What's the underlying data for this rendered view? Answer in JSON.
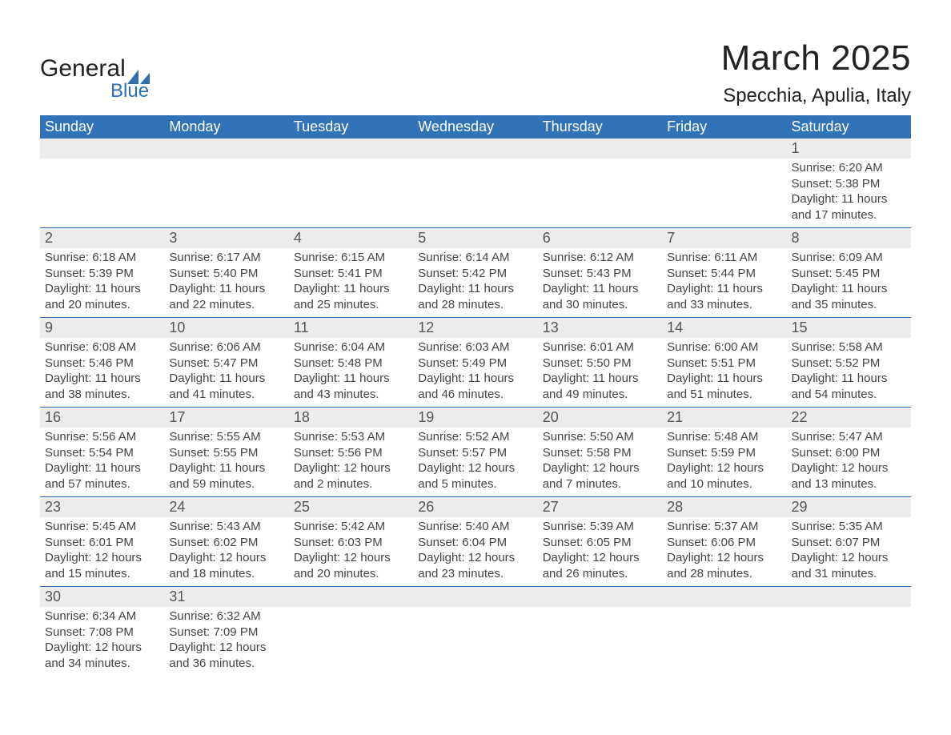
{
  "logo": {
    "text_general": "General",
    "text_blue": "Blue"
  },
  "title": {
    "month": "March 2025",
    "location": "Specchia, Apulia, Italy"
  },
  "style": {
    "header_bg": "#3173b7",
    "header_fg": "#ffffff",
    "daynum_bg": "#ececec",
    "daynum_fg": "#555555",
    "row_divider": "#2e6fb4",
    "body_bg": "#ffffff",
    "body_fg": "#444444",
    "logo_blue": "#2e6fb4",
    "month_fontsize": 44,
    "location_fontsize": 24,
    "header_fontsize": 18,
    "cell_fontsize": 15
  },
  "columns": [
    "Sunday",
    "Monday",
    "Tuesday",
    "Wednesday",
    "Thursday",
    "Friday",
    "Saturday"
  ],
  "weeks": [
    {
      "nums": [
        "",
        "",
        "",
        "",
        "",
        "",
        "1"
      ],
      "cells": [
        {
          "sr": "",
          "ss": "",
          "dl": ""
        },
        {
          "sr": "",
          "ss": "",
          "dl": ""
        },
        {
          "sr": "",
          "ss": "",
          "dl": ""
        },
        {
          "sr": "",
          "ss": "",
          "dl": ""
        },
        {
          "sr": "",
          "ss": "",
          "dl": ""
        },
        {
          "sr": "",
          "ss": "",
          "dl": ""
        },
        {
          "sr": "Sunrise: 6:20 AM",
          "ss": "Sunset: 5:38 PM",
          "dl": "Daylight: 11 hours and 17 minutes."
        }
      ]
    },
    {
      "nums": [
        "2",
        "3",
        "4",
        "5",
        "6",
        "7",
        "8"
      ],
      "cells": [
        {
          "sr": "Sunrise: 6:18 AM",
          "ss": "Sunset: 5:39 PM",
          "dl": "Daylight: 11 hours and 20 minutes."
        },
        {
          "sr": "Sunrise: 6:17 AM",
          "ss": "Sunset: 5:40 PM",
          "dl": "Daylight: 11 hours and 22 minutes."
        },
        {
          "sr": "Sunrise: 6:15 AM",
          "ss": "Sunset: 5:41 PM",
          "dl": "Daylight: 11 hours and 25 minutes."
        },
        {
          "sr": "Sunrise: 6:14 AM",
          "ss": "Sunset: 5:42 PM",
          "dl": "Daylight: 11 hours and 28 minutes."
        },
        {
          "sr": "Sunrise: 6:12 AM",
          "ss": "Sunset: 5:43 PM",
          "dl": "Daylight: 11 hours and 30 minutes."
        },
        {
          "sr": "Sunrise: 6:11 AM",
          "ss": "Sunset: 5:44 PM",
          "dl": "Daylight: 11 hours and 33 minutes."
        },
        {
          "sr": "Sunrise: 6:09 AM",
          "ss": "Sunset: 5:45 PM",
          "dl": "Daylight: 11 hours and 35 minutes."
        }
      ]
    },
    {
      "nums": [
        "9",
        "10",
        "11",
        "12",
        "13",
        "14",
        "15"
      ],
      "cells": [
        {
          "sr": "Sunrise: 6:08 AM",
          "ss": "Sunset: 5:46 PM",
          "dl": "Daylight: 11 hours and 38 minutes."
        },
        {
          "sr": "Sunrise: 6:06 AM",
          "ss": "Sunset: 5:47 PM",
          "dl": "Daylight: 11 hours and 41 minutes."
        },
        {
          "sr": "Sunrise: 6:04 AM",
          "ss": "Sunset: 5:48 PM",
          "dl": "Daylight: 11 hours and 43 minutes."
        },
        {
          "sr": "Sunrise: 6:03 AM",
          "ss": "Sunset: 5:49 PM",
          "dl": "Daylight: 11 hours and 46 minutes."
        },
        {
          "sr": "Sunrise: 6:01 AM",
          "ss": "Sunset: 5:50 PM",
          "dl": "Daylight: 11 hours and 49 minutes."
        },
        {
          "sr": "Sunrise: 6:00 AM",
          "ss": "Sunset: 5:51 PM",
          "dl": "Daylight: 11 hours and 51 minutes."
        },
        {
          "sr": "Sunrise: 5:58 AM",
          "ss": "Sunset: 5:52 PM",
          "dl": "Daylight: 11 hours and 54 minutes."
        }
      ]
    },
    {
      "nums": [
        "16",
        "17",
        "18",
        "19",
        "20",
        "21",
        "22"
      ],
      "cells": [
        {
          "sr": "Sunrise: 5:56 AM",
          "ss": "Sunset: 5:54 PM",
          "dl": "Daylight: 11 hours and 57 minutes."
        },
        {
          "sr": "Sunrise: 5:55 AM",
          "ss": "Sunset: 5:55 PM",
          "dl": "Daylight: 11 hours and 59 minutes."
        },
        {
          "sr": "Sunrise: 5:53 AM",
          "ss": "Sunset: 5:56 PM",
          "dl": "Daylight: 12 hours and 2 minutes."
        },
        {
          "sr": "Sunrise: 5:52 AM",
          "ss": "Sunset: 5:57 PM",
          "dl": "Daylight: 12 hours and 5 minutes."
        },
        {
          "sr": "Sunrise: 5:50 AM",
          "ss": "Sunset: 5:58 PM",
          "dl": "Daylight: 12 hours and 7 minutes."
        },
        {
          "sr": "Sunrise: 5:48 AM",
          "ss": "Sunset: 5:59 PM",
          "dl": "Daylight: 12 hours and 10 minutes."
        },
        {
          "sr": "Sunrise: 5:47 AM",
          "ss": "Sunset: 6:00 PM",
          "dl": "Daylight: 12 hours and 13 minutes."
        }
      ]
    },
    {
      "nums": [
        "23",
        "24",
        "25",
        "26",
        "27",
        "28",
        "29"
      ],
      "cells": [
        {
          "sr": "Sunrise: 5:45 AM",
          "ss": "Sunset: 6:01 PM",
          "dl": "Daylight: 12 hours and 15 minutes."
        },
        {
          "sr": "Sunrise: 5:43 AM",
          "ss": "Sunset: 6:02 PM",
          "dl": "Daylight: 12 hours and 18 minutes."
        },
        {
          "sr": "Sunrise: 5:42 AM",
          "ss": "Sunset: 6:03 PM",
          "dl": "Daylight: 12 hours and 20 minutes."
        },
        {
          "sr": "Sunrise: 5:40 AM",
          "ss": "Sunset: 6:04 PM",
          "dl": "Daylight: 12 hours and 23 minutes."
        },
        {
          "sr": "Sunrise: 5:39 AM",
          "ss": "Sunset: 6:05 PM",
          "dl": "Daylight: 12 hours and 26 minutes."
        },
        {
          "sr": "Sunrise: 5:37 AM",
          "ss": "Sunset: 6:06 PM",
          "dl": "Daylight: 12 hours and 28 minutes."
        },
        {
          "sr": "Sunrise: 5:35 AM",
          "ss": "Sunset: 6:07 PM",
          "dl": "Daylight: 12 hours and 31 minutes."
        }
      ]
    },
    {
      "nums": [
        "30",
        "31",
        "",
        "",
        "",
        "",
        ""
      ],
      "cells": [
        {
          "sr": "Sunrise: 6:34 AM",
          "ss": "Sunset: 7:08 PM",
          "dl": "Daylight: 12 hours and 34 minutes."
        },
        {
          "sr": "Sunrise: 6:32 AM",
          "ss": "Sunset: 7:09 PM",
          "dl": "Daylight: 12 hours and 36 minutes."
        },
        {
          "sr": "",
          "ss": "",
          "dl": ""
        },
        {
          "sr": "",
          "ss": "",
          "dl": ""
        },
        {
          "sr": "",
          "ss": "",
          "dl": ""
        },
        {
          "sr": "",
          "ss": "",
          "dl": ""
        },
        {
          "sr": "",
          "ss": "",
          "dl": ""
        }
      ]
    }
  ]
}
